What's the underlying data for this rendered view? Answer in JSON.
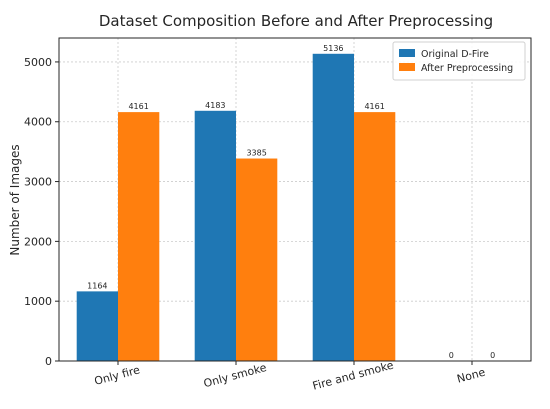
{
  "chart_data": {
    "type": "bar",
    "title": "Dataset Composition Before and After Preprocessing",
    "xlabel": "",
    "ylabel": "Number of Images",
    "categories": [
      "Only fire",
      "Only smoke",
      "Fire and smoke",
      "None"
    ],
    "series": [
      {
        "name": "Original D-Fire",
        "color": "#1f77b4",
        "values": [
          1164,
          4183,
          5136,
          0
        ]
      },
      {
        "name": "After Preprocessing",
        "color": "#ff7f0e",
        "values": [
          4161,
          3385,
          4161,
          0
        ]
      }
    ],
    "ylim": [
      0,
      5400
    ],
    "yticks": [
      0,
      1000,
      2000,
      3000,
      4000,
      5000
    ],
    "grid": true,
    "legend_position": "top-right",
    "xtick_rotation": -15
  }
}
